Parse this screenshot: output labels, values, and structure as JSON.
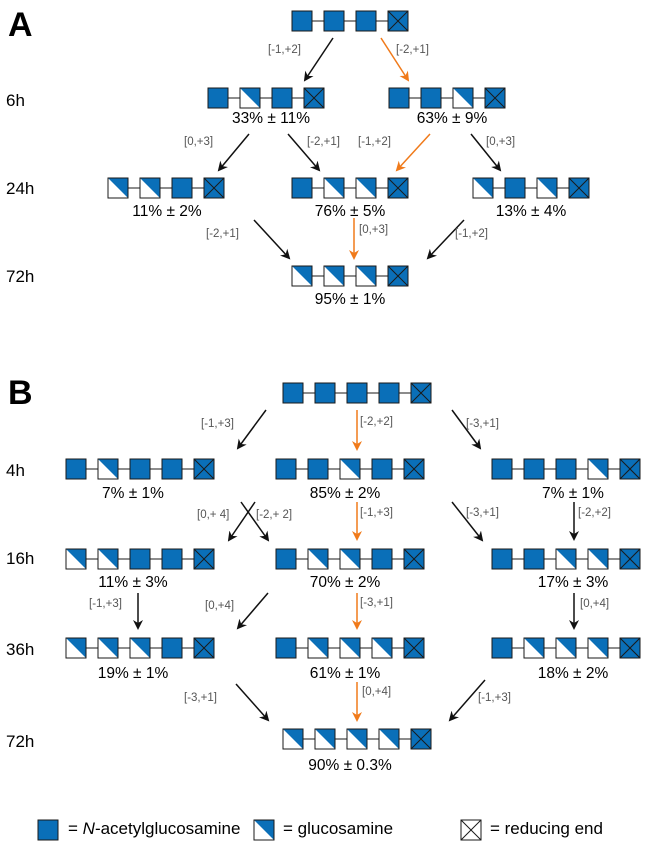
{
  "colors": {
    "glcnac": "#0a6fb8",
    "stroke": "#1a1a1a",
    "black_arrow": "#111111",
    "orange_arrow": "#f07a1a",
    "step_text": "#555555"
  },
  "panel_a": {
    "label": "A",
    "times": [
      "6h",
      "24h",
      "72h"
    ],
    "start": [
      "N",
      "N",
      "N",
      "R"
    ],
    "nodes": {
      "a6_left": {
        "units": [
          "N",
          "G",
          "N",
          "R"
        ],
        "percent": "33% ± 11%"
      },
      "a6_right": {
        "units": [
          "N",
          "N",
          "G",
          "R"
        ],
        "percent": "63% ± 9%"
      },
      "a24_left": {
        "units": [
          "G",
          "G",
          "N",
          "R"
        ],
        "percent": "11% ± 2%"
      },
      "a24_mid": {
        "units": [
          "N",
          "G",
          "G",
          "R"
        ],
        "percent": "76% ± 5%"
      },
      "a24_right": {
        "units": [
          "G",
          "N",
          "G",
          "R"
        ],
        "percent": "13% ± 4%"
      },
      "a72": {
        "units": [
          "G",
          "G",
          "G",
          "R"
        ],
        "percent": "95% ± 1%"
      }
    },
    "steps": [
      {
        "label": "[-1,+2]",
        "color": "black"
      },
      {
        "label": "[-2,+1]",
        "color": "orange"
      },
      {
        "label": "[0,+3]",
        "color": "black"
      },
      {
        "label": "[-2,+1]",
        "color": "black"
      },
      {
        "label": "[-1,+2]",
        "color": "orange"
      },
      {
        "label": "[0,+3]",
        "color": "black"
      },
      {
        "label": "[-2,+1]",
        "color": "black"
      },
      {
        "label": "[0,+3]",
        "color": "orange"
      },
      {
        "label": "[-1,+2]",
        "color": "black"
      }
    ]
  },
  "panel_b": {
    "label": "B",
    "times": [
      "4h",
      "16h",
      "36h",
      "72h"
    ],
    "start": [
      "N",
      "N",
      "N",
      "N",
      "R"
    ],
    "nodes": {
      "b4_left": {
        "units": [
          "N",
          "G",
          "N",
          "N",
          "R"
        ],
        "percent": "7% ± 1%"
      },
      "b4_mid": {
        "units": [
          "N",
          "N",
          "G",
          "N",
          "R"
        ],
        "percent": "85% ± 2%"
      },
      "b4_right": {
        "units": [
          "N",
          "N",
          "N",
          "G",
          "R"
        ],
        "percent": "7% ± 1%"
      },
      "b16_left": {
        "units": [
          "G",
          "G",
          "N",
          "N",
          "R"
        ],
        "percent": "11% ± 3%"
      },
      "b16_mid": {
        "units": [
          "N",
          "G",
          "G",
          "N",
          "R"
        ],
        "percent": "70% ± 2%"
      },
      "b16_right": {
        "units": [
          "N",
          "N",
          "G",
          "G",
          "R"
        ],
        "percent": "17% ± 3%"
      },
      "b36_left": {
        "units": [
          "G",
          "G",
          "G",
          "N",
          "R"
        ],
        "percent": "19% ± 1%"
      },
      "b36_mid": {
        "units": [
          "N",
          "G",
          "G",
          "G",
          "R"
        ],
        "percent": "61% ± 1%"
      },
      "b36_right": {
        "units": [
          "N",
          "G",
          "G",
          "G",
          "R"
        ],
        "percent": "18% ± 2%"
      },
      "b72": {
        "units": [
          "G",
          "G",
          "G",
          "G",
          "R"
        ],
        "percent": "90% ± 0.3%"
      }
    },
    "steps": [
      {
        "label": "[-1,+3]",
        "color": "black"
      },
      {
        "label": "[-2,+2]",
        "color": "orange"
      },
      {
        "label": "[-3,+1]",
        "color": "black"
      },
      {
        "label": "[0,+ 4]",
        "color": "black"
      },
      {
        "label": "[-2,+ 2]",
        "color": "black"
      },
      {
        "label": "[-1,+3]",
        "color": "orange"
      },
      {
        "label": "[-3,+1]",
        "color": "black"
      },
      {
        "label": "[-2,+2]",
        "color": "black"
      },
      {
        "label": "[-1,+3]",
        "color": "black"
      },
      {
        "label": "[0,+4]",
        "color": "black"
      },
      {
        "label": "[-3,+1]",
        "color": "orange"
      },
      {
        "label": "[0,+4]",
        "color": "black"
      },
      {
        "label": "[-3,+1]",
        "color": "black"
      },
      {
        "label": "[0,+4]",
        "color": "orange"
      },
      {
        "label": "[-1,+3]",
        "color": "black"
      }
    ]
  },
  "legend": {
    "glcnac_prefix": "= ",
    "glcnac_italic": "N",
    "glcnac_rest": "-acetylglucosamine",
    "glcn": "= glucosamine",
    "reducing": "= reducing end"
  }
}
